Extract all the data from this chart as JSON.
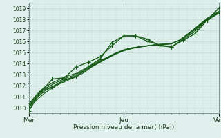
{
  "xlabel": "Pression niveau de la mer( hPa )",
  "background_color": "#dff0ec",
  "grid_major_color": "#c0d8d4",
  "grid_minor_color": "#d4e8e4",
  "line_color": "#1a5c1a",
  "ylim": [
    1009.5,
    1019.5
  ],
  "yticks": [
    1010,
    1011,
    1012,
    1013,
    1014,
    1015,
    1016,
    1017,
    1018,
    1019
  ],
  "xtick_labels": [
    "Mer",
    "Jeu",
    "Ven"
  ],
  "xtick_positions": [
    0.0,
    2.0,
    4.0
  ],
  "xlim": [
    0.0,
    4.0
  ],
  "vline_positions": [
    0.0,
    2.0,
    4.0
  ],
  "series": [
    {
      "x": [
        0.0,
        0.17,
        0.33,
        0.5,
        0.67,
        0.83,
        1.0,
        1.17,
        1.33,
        1.5,
        1.67,
        1.83,
        2.0,
        2.17,
        2.33,
        2.5,
        2.67,
        2.83,
        3.0,
        3.17,
        3.33,
        3.5,
        3.67,
        3.83,
        4.0
      ],
      "y": [
        1010.0,
        1010.7,
        1011.3,
        1011.8,
        1012.2,
        1012.5,
        1012.8,
        1013.2,
        1013.7,
        1014.1,
        1014.5,
        1014.9,
        1015.2,
        1015.4,
        1015.5,
        1015.6,
        1015.7,
        1015.75,
        1015.8,
        1016.1,
        1016.6,
        1017.2,
        1017.8,
        1018.3,
        1018.7
      ],
      "lw": 0.9,
      "markers": false
    },
    {
      "x": [
        0.0,
        0.17,
        0.33,
        0.5,
        0.67,
        0.83,
        1.0,
        1.17,
        1.33,
        1.5,
        1.67,
        1.83,
        2.0,
        2.17,
        2.33,
        2.5,
        2.67,
        2.83,
        3.0,
        3.17,
        3.33,
        3.5,
        3.67,
        3.83,
        4.0
      ],
      "y": [
        1010.1,
        1010.9,
        1011.5,
        1011.9,
        1012.3,
        1012.6,
        1012.9,
        1013.3,
        1013.75,
        1014.15,
        1014.5,
        1014.85,
        1015.15,
        1015.35,
        1015.5,
        1015.6,
        1015.7,
        1015.75,
        1015.8,
        1016.1,
        1016.6,
        1017.15,
        1017.75,
        1018.2,
        1018.65
      ],
      "lw": 0.9,
      "markers": false
    },
    {
      "x": [
        0.0,
        0.17,
        0.33,
        0.5,
        0.67,
        0.83,
        1.0,
        1.17,
        1.33,
        1.5,
        1.67,
        1.83,
        2.0,
        2.17,
        2.33,
        2.5,
        2.67,
        2.83,
        3.0,
        3.17,
        3.33,
        3.5,
        3.67,
        3.83,
        4.0
      ],
      "y": [
        1010.2,
        1011.1,
        1011.7,
        1012.1,
        1012.45,
        1012.75,
        1013.0,
        1013.4,
        1013.8,
        1014.2,
        1014.55,
        1014.9,
        1015.2,
        1015.4,
        1015.5,
        1015.6,
        1015.68,
        1015.74,
        1015.78,
        1016.1,
        1016.55,
        1017.1,
        1017.7,
        1018.15,
        1018.6
      ],
      "lw": 0.9,
      "markers": false
    },
    {
      "x": [
        0.0,
        0.17,
        0.33,
        0.5,
        0.67,
        0.83,
        1.0,
        1.17,
        1.33,
        1.5,
        1.67,
        1.83,
        2.0,
        2.17,
        2.33,
        2.5,
        2.67,
        2.83,
        3.0,
        3.17,
        3.33,
        3.5,
        3.67,
        3.83,
        4.0
      ],
      "y": [
        1010.3,
        1011.2,
        1011.85,
        1012.25,
        1012.6,
        1012.9,
        1013.1,
        1013.5,
        1013.85,
        1014.25,
        1014.6,
        1014.95,
        1015.25,
        1015.42,
        1015.52,
        1015.6,
        1015.67,
        1015.73,
        1015.78,
        1016.1,
        1016.55,
        1017.05,
        1017.65,
        1018.1,
        1018.55
      ],
      "lw": 0.9,
      "markers": false
    },
    {
      "x": [
        0.0,
        0.25,
        0.5,
        0.75,
        1.0,
        1.25,
        1.5,
        1.75,
        2.0,
        2.25,
        2.5,
        2.75,
        3.0,
        3.25,
        3.5,
        3.75,
        4.0
      ],
      "y": [
        1010.0,
        1011.5,
        1011.9,
        1012.5,
        1012.8,
        1013.7,
        1014.4,
        1015.9,
        1016.5,
        1016.5,
        1016.2,
        1015.6,
        1015.5,
        1016.2,
        1016.9,
        1018.0,
        1018.6
      ],
      "lw": 1.0,
      "markers": true
    },
    {
      "x": [
        0.0,
        0.25,
        0.5,
        0.75,
        1.0,
        1.25,
        1.5,
        1.75,
        2.0,
        2.25,
        2.5,
        2.75,
        3.0,
        3.25,
        3.5,
        3.75,
        4.0
      ],
      "y": [
        1009.7,
        1011.4,
        1012.6,
        1012.7,
        1013.7,
        1014.1,
        1014.6,
        1015.6,
        1016.5,
        1016.5,
        1016.0,
        1015.7,
        1015.5,
        1016.1,
        1016.7,
        1017.9,
        1019.0
      ],
      "lw": 1.0,
      "markers": true
    }
  ]
}
